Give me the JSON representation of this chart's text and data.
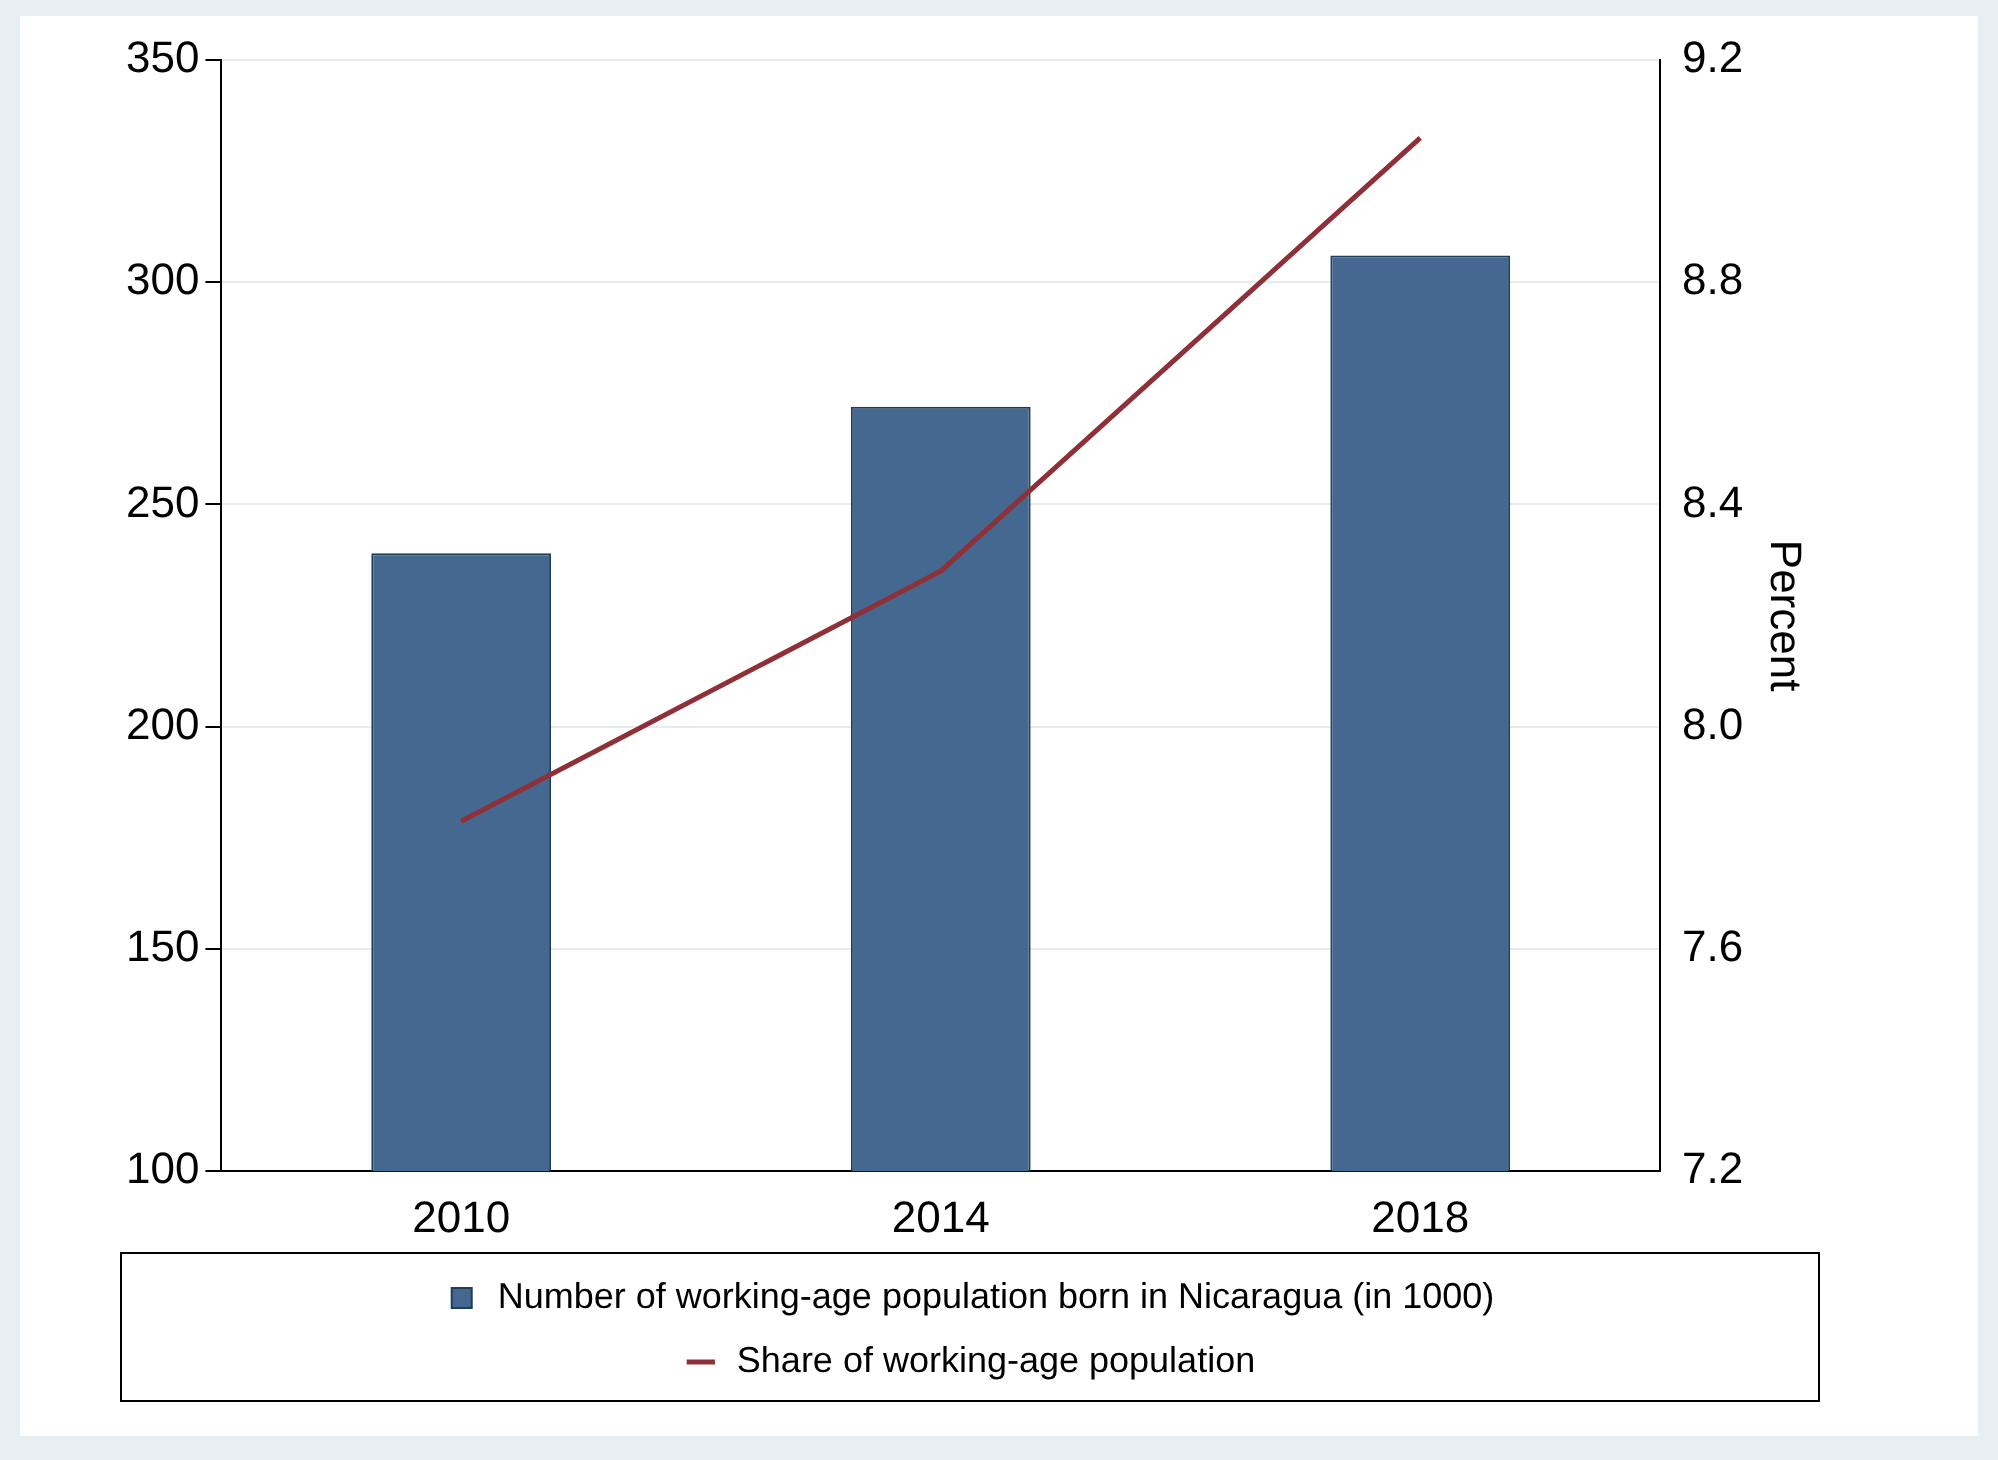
{
  "chart_data": {
    "type": "bar",
    "categories": [
      "2010",
      "2014",
      "2018"
    ],
    "series": [
      {
        "name": "Number of working-age population born in Nicaragua (in 1000)",
        "color": "#446890",
        "values": [
          239,
          272,
          306
        ]
      },
      {
        "name": "Share of working-age population",
        "type": "line",
        "axis": "y2",
        "color": "#8f3038",
        "values": [
          7.83,
          8.28,
          9.06
        ]
      }
    ],
    "ylim": [
      100,
      350
    ],
    "yticks": [
      100,
      150,
      200,
      250,
      300,
      350
    ],
    "y2lim": [
      7.2,
      9.2
    ],
    "y2ticks": [
      7.2,
      7.6,
      {
        "value": 8,
        "label": "8.0"
      },
      8.4,
      8.8,
      9.2
    ],
    "y2label": "Percent",
    "grid": "y",
    "legend": "bottom",
    "marker": "none"
  }
}
